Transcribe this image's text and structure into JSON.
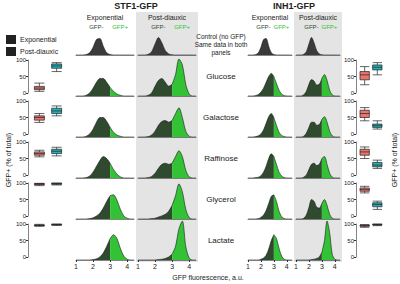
{
  "chart_data": {
    "type": "ridgeline",
    "x": [
      1.0,
      1.2,
      1.4,
      1.6,
      1.8,
      2.0,
      2.2,
      2.4,
      2.6,
      2.8,
      3.0,
      3.2,
      3.4,
      3.6,
      3.8,
      4.0,
      4.2,
      4.4
    ],
    "xlim": [
      1,
      4.4
    ],
    "xticks": [
      1,
      2,
      3,
      4
    ],
    "x_label": "GFP fluorescence, a.u.",
    "ylim": [
      0,
      1
    ],
    "gfp_threshold": 3,
    "series": [
      {
        "name": "Exponential",
        "color": "#e8766d"
      },
      {
        "name": "Post-diauxic",
        "color": "#21b3b8"
      }
    ],
    "gates": [
      {
        "name": "GFP-",
        "color": "#2f4a2f"
      },
      {
        "name": "GFP+",
        "color": "#33c236"
      }
    ],
    "control": {
      "label": [
        "Control (no GFP)",
        "Same data in both",
        "panels"
      ],
      "color": "#3a3a3a",
      "Exponential": [
        0,
        0,
        0,
        0.02,
        0.1,
        0.35,
        0.7,
        0.75,
        0.4,
        0.1,
        0.02,
        0,
        0,
        0,
        0,
        0,
        0,
        0
      ],
      "Post-diauxic": [
        0,
        0,
        0,
        0.03,
        0.15,
        0.5,
        0.8,
        0.55,
        0.2,
        0.05,
        0.01,
        0,
        0,
        0,
        0,
        0,
        0,
        0
      ]
    },
    "conditions": [
      "Glucose",
      "Galactose",
      "Raffinose",
      "Glycerol",
      "Lactate"
    ],
    "panels": [
      {
        "title": "STF1-GFP",
        "histograms": {
          "Exponential": [
            [
              0,
              0,
              0,
              0.02,
              0.08,
              0.2,
              0.35,
              0.45,
              0.45,
              0.35,
              0.22,
              0.12,
              0.05,
              0.02,
              0,
              0,
              0,
              0
            ],
            [
              0,
              0,
              0,
              0.02,
              0.08,
              0.2,
              0.38,
              0.5,
              0.5,
              0.4,
              0.25,
              0.12,
              0.05,
              0.02,
              0,
              0,
              0,
              0
            ],
            [
              0,
              0,
              0,
              0.01,
              0.05,
              0.15,
              0.3,
              0.45,
              0.55,
              0.5,
              0.38,
              0.22,
              0.1,
              0.03,
              0,
              0,
              0,
              0
            ],
            [
              0,
              0,
              0,
              0,
              0.01,
              0.03,
              0.08,
              0.15,
              0.28,
              0.45,
              0.6,
              0.62,
              0.48,
              0.25,
              0.08,
              0.02,
              0,
              0
            ],
            [
              0,
              0,
              0,
              0,
              0,
              0.01,
              0.03,
              0.08,
              0.18,
              0.35,
              0.55,
              0.65,
              0.55,
              0.3,
              0.1,
              0.02,
              0,
              0
            ]
          ],
          "Post-diauxic": [
            [
              0,
              0,
              0,
              0.02,
              0.08,
              0.25,
              0.4,
              0.45,
              0.35,
              0.25,
              0.3,
              0.55,
              0.95,
              0.8,
              0.3,
              0.05,
              0,
              0
            ],
            [
              0,
              0,
              0,
              0.01,
              0.05,
              0.15,
              0.3,
              0.4,
              0.42,
              0.38,
              0.42,
              0.6,
              0.75,
              0.5,
              0.15,
              0.02,
              0,
              0
            ],
            [
              0,
              0,
              0,
              0.01,
              0.04,
              0.12,
              0.25,
              0.35,
              0.38,
              0.35,
              0.38,
              0.55,
              0.7,
              0.55,
              0.2,
              0.03,
              0,
              0
            ],
            [
              0,
              0,
              0,
              0,
              0.01,
              0.02,
              0.05,
              0.08,
              0.12,
              0.2,
              0.35,
              0.6,
              0.9,
              0.7,
              0.25,
              0.04,
              0,
              0
            ],
            [
              0,
              0,
              0,
              0,
              0,
              0,
              0.01,
              0.02,
              0.04,
              0.08,
              0.15,
              0.35,
              0.8,
              1.0,
              0.35,
              0.05,
              0,
              0
            ]
          ]
        },
        "boxes": {
          "Exponential": [
            [
              5,
              10,
              15,
              20,
              30
            ],
            [
              35,
              42,
              50,
              55,
              62
            ],
            [
              55,
              60,
              65,
              70,
              75
            ],
            [
              92,
              95,
              97,
              98,
              99
            ],
            [
              93,
              95,
              96,
              97,
              99
            ]
          ],
          "Post-diauxic": [
            [
              65,
              75,
              82,
              88,
              92
            ],
            [
              55,
              62,
              70,
              78,
              85
            ],
            [
              58,
              65,
              72,
              78,
              84
            ],
            [
              94,
              96,
              98,
              99,
              100
            ],
            [
              96,
              97,
              98,
              99,
              100
            ]
          ]
        }
      },
      {
        "title": "INH1-GFP",
        "histograms": {
          "Exponential": [
            [
              0,
              0,
              0,
              0.01,
              0.04,
              0.1,
              0.2,
              0.35,
              0.5,
              0.58,
              0.5,
              0.32,
              0.15,
              0.05,
              0.01,
              0,
              0,
              0
            ],
            [
              0,
              0,
              0,
              0.01,
              0.03,
              0.08,
              0.18,
              0.35,
              0.52,
              0.6,
              0.5,
              0.3,
              0.12,
              0.04,
              0.01,
              0,
              0,
              0
            ],
            [
              0,
              0,
              0,
              0.01,
              0.02,
              0.06,
              0.15,
              0.3,
              0.5,
              0.62,
              0.55,
              0.35,
              0.15,
              0.05,
              0.01,
              0,
              0,
              0
            ],
            [
              0,
              0,
              0,
              0,
              0.01,
              0.04,
              0.1,
              0.22,
              0.4,
              0.58,
              0.62,
              0.45,
              0.2,
              0.06,
              0.01,
              0,
              0,
              0
            ],
            [
              0,
              0,
              0,
              0,
              0,
              0.02,
              0.05,
              0.12,
              0.28,
              0.5,
              0.65,
              0.55,
              0.3,
              0.1,
              0.02,
              0,
              0,
              0
            ]
          ],
          "Post-diauxic": [
            [
              0,
              0,
              0,
              0.03,
              0.12,
              0.3,
              0.42,
              0.38,
              0.28,
              0.3,
              0.45,
              0.55,
              0.4,
              0.15,
              0.03,
              0,
              0,
              0
            ],
            [
              0,
              0,
              0,
              0.02,
              0.1,
              0.25,
              0.38,
              0.38,
              0.3,
              0.32,
              0.45,
              0.52,
              0.38,
              0.15,
              0.03,
              0,
              0,
              0
            ],
            [
              0,
              0,
              0,
              0.02,
              0.08,
              0.22,
              0.35,
              0.38,
              0.32,
              0.35,
              0.5,
              0.55,
              0.35,
              0.12,
              0.02,
              0,
              0,
              0
            ],
            [
              0,
              0,
              0,
              0.02,
              0.1,
              0.3,
              0.5,
              0.45,
              0.3,
              0.28,
              0.4,
              0.5,
              0.35,
              0.12,
              0.02,
              0,
              0,
              0
            ],
            [
              0,
              0,
              0,
              0,
              0,
              0,
              0.01,
              0.02,
              0.04,
              0.08,
              0.2,
              0.5,
              1.0,
              0.7,
              0.15,
              0.02,
              0,
              0
            ]
          ]
        },
        "boxes": {
          "Exponential": [
            [
              25,
              40,
              55,
              65,
              80
            ],
            [
              40,
              50,
              62,
              72,
              80
            ],
            [
              50,
              60,
              70,
              78,
              85
            ],
            [
              70,
              75,
              80,
              85,
              90
            ],
            [
              90,
              93,
              95,
              97,
              98
            ]
          ],
          "Post-diauxic": [
            [
              55,
              70,
              78,
              85,
              92
            ],
            [
              15,
              20,
              25,
              30,
              40
            ],
            [
              20,
              25,
              30,
              38,
              45
            ],
            [
              20,
              28,
              35,
              40,
              45
            ],
            [
              95,
              97,
              98,
              99,
              100
            ]
          ]
        }
      }
    ],
    "box_label": "GFP+ (% of total)",
    "box_ylim": [
      0,
      100
    ],
    "box_yticks": [
      0,
      50,
      100
    ],
    "legend": "upper left"
  }
}
